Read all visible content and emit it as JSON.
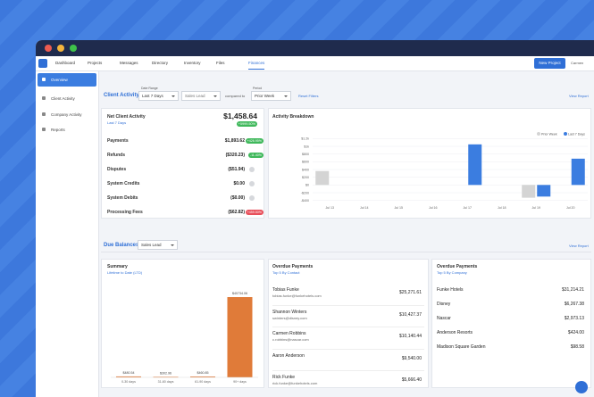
{
  "nav": {
    "tabs": [
      "Dashboard",
      "Projects",
      "Messages",
      "Directory",
      "Inventory",
      "Files",
      "Finances"
    ],
    "new_project": "New Project",
    "user": "Carmen"
  },
  "sidebar": [
    "Overview",
    "Client Activity",
    "Company Activity",
    "Reports"
  ],
  "client_activity": {
    "title": "Client Activity",
    "date_range_label": "Date Range",
    "date_range": "Last 7 Days",
    "sales_lead": "Sales Lead",
    "compared_to": "compared to",
    "period_label": "Period",
    "period": "Prior Week",
    "reset": "Reset Filters",
    "view_report": "View Report"
  },
  "net_activity": {
    "title": "Net Client Activity",
    "subtitle": "Last 7 Days",
    "total": "$1,458.64",
    "total_change": "+5999.50%",
    "rows": [
      {
        "label": "Payments",
        "amount": "$1,893.62",
        "change": "+426.95%"
      },
      {
        "label": "Refunds",
        "amount": "($320.23)",
        "change": "-11.40%"
      },
      {
        "label": "Disputes",
        "amount": "($51.94)"
      },
      {
        "label": "System Credits",
        "amount": "$0.00"
      },
      {
        "label": "System Debits",
        "amount": "($0.00)"
      },
      {
        "label": "Processing Fees",
        "amount": "($62.82)",
        "change": "+459.50%"
      }
    ]
  },
  "activity_breakdown": {
    "title": "Activity Breakdown",
    "categories": [
      "Jul 13",
      "Jul 14",
      "Jul 15",
      "Jul 16",
      "Jul 17",
      "Jul 18",
      "Jul 19",
      "Jul 20"
    ],
    "series": [
      {
        "name": "Prior Week",
        "color": "#d4d4d4",
        "values": [
          360,
          0,
          0,
          0,
          0,
          0,
          -330,
          0
        ]
      },
      {
        "name": "Last 7 Days",
        "color": "#3b7de0",
        "values": [
          0,
          0,
          0,
          0,
          1050,
          0,
          -300,
          680
        ]
      }
    ],
    "ylim": [
      -500,
      1300
    ],
    "yticks": [
      {
        "value": 1200,
        "label": "$1.2k"
      },
      {
        "value": 1000,
        "label": "$1k"
      },
      {
        "value": 800,
        "label": "$800"
      },
      {
        "value": 600,
        "label": "$600"
      },
      {
        "value": 400,
        "label": "$400"
      },
      {
        "value": 200,
        "label": "$200"
      },
      {
        "value": 0,
        "label": "$0"
      },
      {
        "value": -200,
        "label": "-$200"
      },
      {
        "value": -400,
        "label": "-$400"
      }
    ]
  },
  "due_balances": {
    "title": "Due Balances",
    "filter": "Sales Lead",
    "view_report": "View Report"
  },
  "summary": {
    "title": "Summary",
    "subtitle": "Lifetime to Date (LTD)",
    "categories": [
      "0-30 days",
      "31-60 days",
      "61-90 days",
      "90+ days"
    ],
    "values": [
      480.54,
      302.96,
      460.85,
      40734.06
    ],
    "value_labels": [
      "$480.54",
      "$302.96",
      "$460.85",
      "$40734.06"
    ],
    "color": "#e07b39"
  },
  "overdue_contacts": {
    "title": "Overdue Payments",
    "subtitle": "Top 5 By Contact",
    "rows": [
      {
        "name": "Tobias Funke",
        "email": "tobias.funke@funkehotels.com",
        "amount": "$25,271.61"
      },
      {
        "name": "Shannon Winters",
        "email": "swinters@disney.com",
        "amount": "$10,427.37"
      },
      {
        "name": "Carmen Robbins",
        "email": "c.robbins@nascar.com",
        "amount": "$10,140.44"
      },
      {
        "name": "Aaron Anderson",
        "amount": "$9,540.00"
      },
      {
        "name": "Rick Funke",
        "email": "rick.funke@funkehotels.com",
        "amount": "$5,666.40"
      }
    ]
  },
  "overdue_companies": {
    "title": "Overdue Payments",
    "subtitle": "Top 5 By Company",
    "rows": [
      {
        "name": "Funke Hotels",
        "amount": "$31,214.21"
      },
      {
        "name": "Disney",
        "amount": "$6,267.38"
      },
      {
        "name": "Nascar",
        "amount": "$2,973.13"
      },
      {
        "name": "Anderson Resorts",
        "amount": "$424.00"
      },
      {
        "name": "Madison Square Garden",
        "amount": "$98.58"
      }
    ]
  }
}
